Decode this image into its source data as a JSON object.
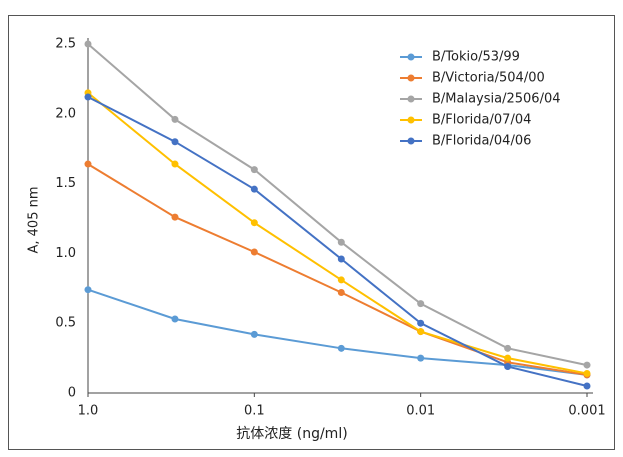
{
  "chart_data": {
    "type": "line",
    "xlabel": "抗体浓度 (ng/ml)",
    "ylabel": "A, 405 nm",
    "x": [
      1,
      0.3,
      0.1,
      0.03,
      0.01,
      0.003,
      0.001
    ],
    "xscale": "log",
    "xlim": [
      1,
      0.001
    ],
    "xticks": [
      {
        "value": 1,
        "label": "1.0"
      },
      0.1,
      0.01,
      0.001
    ],
    "ylim": [
      0,
      2.5
    ],
    "yticks": [
      0,
      0.5,
      {
        "value": 1,
        "label": "1.0"
      },
      1.5,
      {
        "value": 2,
        "label": "2.0"
      },
      2.5
    ],
    "grid": false,
    "legend": "upper right",
    "series": [
      {
        "name": "B/Tokio/53/99",
        "color": "#5b9bd5",
        "values": [
          0.74,
          0.53,
          0.42,
          0.32,
          0.25,
          0.2,
          0.13
        ]
      },
      {
        "name": "B/Victoria/504/00",
        "color": "#ed7d31",
        "values": [
          1.64,
          1.26,
          1.01,
          0.72,
          0.44,
          0.22,
          0.13
        ]
      },
      {
        "name": "B/Malaysia/2506/04",
        "color": "#a5a5a5",
        "values": [
          2.5,
          1.96,
          1.6,
          1.08,
          0.64,
          0.32,
          0.2
        ]
      },
      {
        "name": "B/Florida/07/04",
        "color": "#ffc000",
        "values": [
          2.15,
          1.64,
          1.22,
          0.81,
          0.44,
          0.25,
          0.14
        ]
      },
      {
        "name": "B/Florida/04/06",
        "color": "#4472c4",
        "values": [
          2.12,
          1.8,
          1.46,
          0.96,
          0.5,
          0.19,
          0.05
        ]
      }
    ]
  }
}
